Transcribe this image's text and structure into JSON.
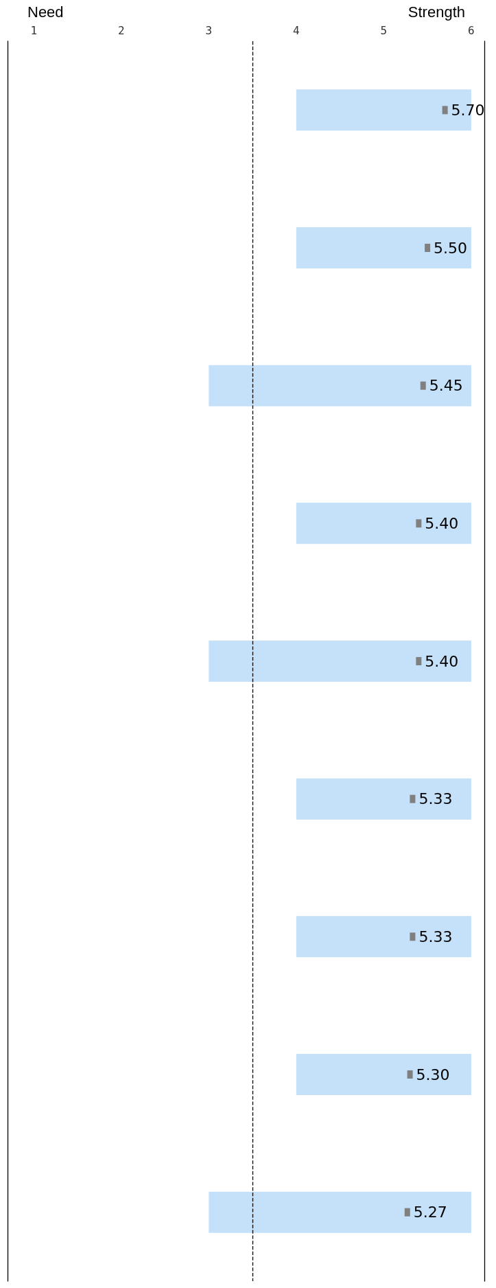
{
  "chart_data": {
    "type": "bar",
    "orientation": "horizontal",
    "categories": [
      null,
      null,
      null,
      null,
      null,
      null,
      null,
      null,
      null
    ],
    "series": [
      {
        "color": "#c5e1f9",
        "base": [
          4,
          4,
          3,
          4,
          3,
          4,
          4,
          4,
          3
        ],
        "values": [
          2,
          2,
          3,
          2,
          3,
          2,
          2,
          2,
          3
        ]
      },
      {
        "type": "scatter",
        "color": "#808080",
        "marker": "square",
        "values": [
          5.7,
          5.5,
          5.45,
          5.4,
          5.4,
          5.33,
          5.33,
          5.3,
          5.27
        ],
        "value_labels": [
          "5.70",
          "5.50",
          "5.45",
          "5.40",
          "5.40",
          "5.33",
          "5.33",
          "5.30",
          "5.27"
        ]
      }
    ],
    "xlim": [
      0.7,
      6.15
    ],
    "xticks": [
      1,
      2,
      3,
      4,
      5,
      6
    ],
    "grid": false,
    "ref_lines": [
      {
        "axis": "x",
        "value": 3.5,
        "color": "#000000",
        "line_style": "dashed"
      }
    ],
    "annotations": [
      "Need",
      "Strength"
    ]
  }
}
